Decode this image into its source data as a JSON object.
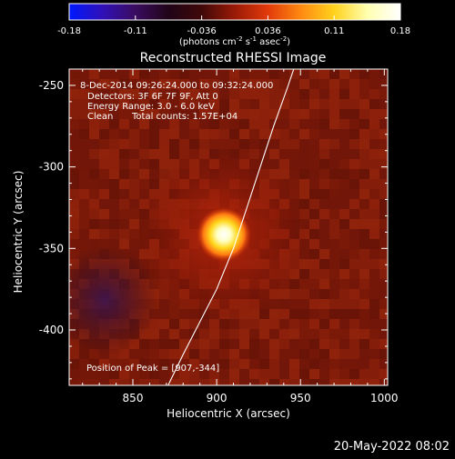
{
  "colorbar": {
    "tick_labels": [
      "-0.18",
      "-0.11",
      "-0.036",
      "0.036",
      "0.11",
      "0.18"
    ],
    "range": [
      -0.18,
      0.18
    ],
    "unit_main": "(photons cm",
    "unit_exp1": "-2",
    "unit_s": " s",
    "unit_exp2": "-1",
    "unit_asec": " asec",
    "unit_exp3": "-2",
    "unit_close": ")",
    "colormap": [
      "#0018ff",
      "#3010b8",
      "#3a0c60",
      "#200418",
      "#400808",
      "#9a1a08",
      "#e23a0a",
      "#ff8a12",
      "#ffd21c",
      "#ffffb0",
      "#ffffff"
    ]
  },
  "chart_data": {
    "type": "heatmap",
    "title": "Reconstructed RHESSI Image",
    "xlabel": "Heliocentric X (arcsec)",
    "ylabel": "Heliocentric Y (arcsec)",
    "xlim": [
      812,
      1002
    ],
    "ylim": [
      -434,
      -240
    ],
    "x_ticks": [
      850,
      900,
      950,
      1000
    ],
    "y_ticks": [
      -250,
      -300,
      -350,
      -400
    ],
    "x_tick_labels": [
      "850",
      "900",
      "950",
      "1000"
    ],
    "y_tick_labels": [
      "-250",
      "-300",
      "-350",
      "-400"
    ],
    "peak": [
      907,
      -344
    ],
    "limb_curve": [
      [
        871,
        -434
      ],
      [
        880,
        -415
      ],
      [
        890,
        -395
      ],
      [
        900,
        -375
      ],
      [
        910,
        -350
      ],
      [
        918,
        -325
      ],
      [
        926,
        -300
      ],
      [
        934,
        -275
      ],
      [
        942,
        -252
      ],
      [
        946,
        -240
      ]
    ]
  },
  "annotations": {
    "time_range": "8-Dec-2014 09:26:24.000 to 09:32:24.000",
    "detectors": "Detectors: 3F 6F 7F 9F, Att 0",
    "energy": "Energy Range: 3.0 - 6.0 keV",
    "clean": "Clean",
    "total_counts": "Total counts: 1.57E+04",
    "peak_position": "Position of Peak = [907,-344]"
  },
  "footer": {
    "timestamp": "20-May-2022 08:02"
  }
}
